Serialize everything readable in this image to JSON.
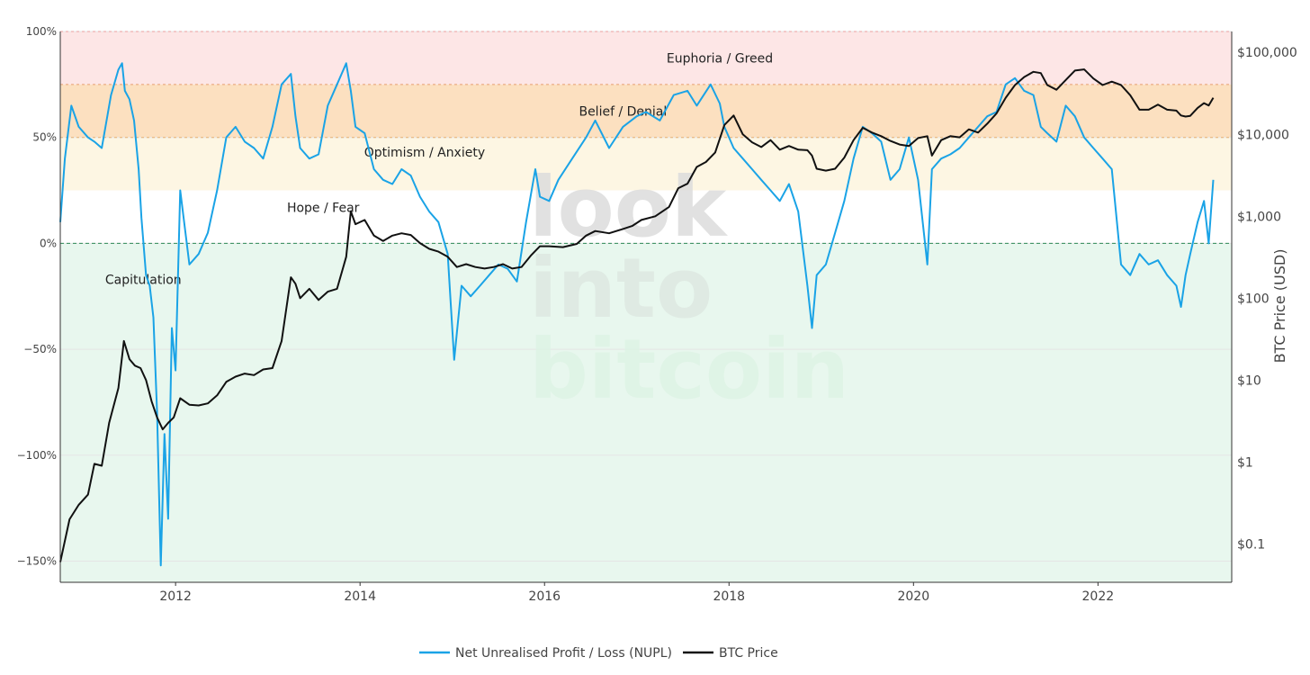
{
  "chart_data": {
    "type": "line",
    "title": "",
    "watermark": [
      "look",
      "into",
      "bitcoin"
    ],
    "x_range": [
      2010.75,
      2023.45
    ],
    "x_ticks": [
      2012,
      2014,
      2016,
      2018,
      2020,
      2022
    ],
    "x_tick_labels": [
      "2012",
      "2014",
      "2016",
      "2018",
      "2020",
      "2022"
    ],
    "y_left": {
      "range": [
        -160,
        100
      ],
      "ticks": [
        100,
        50,
        0,
        -50,
        -100,
        -150
      ],
      "tick_labels": [
        "100%",
        "50%",
        "0%",
        "−50%",
        "−100%",
        "−150%"
      ],
      "unit": "percent"
    },
    "y_right": {
      "label": "BTC Price (USD)",
      "scale": "log",
      "range": [
        0.034,
        180000
      ],
      "ticks": [
        100000,
        10000,
        1000,
        100,
        10,
        1,
        0.1
      ],
      "tick_labels": [
        "$100,000",
        "$10,000",
        "$1,000",
        "$100",
        "$10",
        "$1",
        "$0.1"
      ]
    },
    "zones": [
      {
        "label": "Euphoria / Greed",
        "from": 75,
        "to": 100,
        "color": "#fde6e6"
      },
      {
        "label": "Belief / Denial",
        "from": 50,
        "to": 75,
        "color": "#fce0c0"
      },
      {
        "label": "Optimism / Anxiety",
        "from": 25,
        "to": 50,
        "color": "#fdf6e3"
      },
      {
        "label": "Hope / Fear",
        "from": 0,
        "to": 25,
        "color": "#ffffff"
      },
      {
        "label": "Capitulation",
        "from": -160,
        "to": 0,
        "color": "#e8f7ee"
      }
    ],
    "zone_label_anchor": [
      2017.9,
      2016.85,
      2014.7,
      2013.6,
      2011.65
    ],
    "zone_label_value": [
      87.5,
      62.5,
      43,
      17,
      -17
    ],
    "series": [
      {
        "name": "Net Unrealised Profit / Loss (NUPL)",
        "axis": "left",
        "color": "#1aa3e6",
        "x": [
          2010.75,
          2010.8,
          2010.87,
          2010.95,
          2011.05,
          2011.12,
          2011.2,
          2011.3,
          2011.38,
          2011.42,
          2011.45,
          2011.5,
          2011.55,
          2011.6,
          2011.63,
          2011.68,
          2011.72,
          2011.76,
          2011.8,
          2011.84,
          2011.88,
          2011.92,
          2011.96,
          2012.0,
          2012.05,
          2012.15,
          2012.25,
          2012.35,
          2012.45,
          2012.55,
          2012.65,
          2012.75,
          2012.85,
          2012.95,
          2013.05,
          2013.15,
          2013.25,
          2013.3,
          2013.35,
          2013.45,
          2013.55,
          2013.65,
          2013.75,
          2013.85,
          2013.9,
          2013.95,
          2014.05,
          2014.15,
          2014.25,
          2014.35,
          2014.45,
          2014.55,
          2014.65,
          2014.75,
          2014.85,
          2014.95,
          2015.02,
          2015.1,
          2015.2,
          2015.3,
          2015.4,
          2015.5,
          2015.6,
          2015.7,
          2015.8,
          2015.9,
          2015.95,
          2016.05,
          2016.15,
          2016.3,
          2016.45,
          2016.55,
          2016.7,
          2016.85,
          2017.0,
          2017.1,
          2017.25,
          2017.4,
          2017.55,
          2017.65,
          2017.8,
          2017.9,
          2017.95,
          2018.05,
          2018.15,
          2018.25,
          2018.35,
          2018.45,
          2018.55,
          2018.65,
          2018.75,
          2018.85,
          2018.9,
          2018.95,
          2019.05,
          2019.15,
          2019.25,
          2019.35,
          2019.45,
          2019.55,
          2019.65,
          2019.75,
          2019.85,
          2019.95,
          2020.05,
          2020.15,
          2020.2,
          2020.3,
          2020.4,
          2020.5,
          2020.6,
          2020.7,
          2020.8,
          2020.9,
          2021.0,
          2021.1,
          2021.2,
          2021.3,
          2021.38,
          2021.45,
          2021.55,
          2021.65,
          2021.75,
          2021.85,
          2021.95,
          2022.05,
          2022.15,
          2022.25,
          2022.35,
          2022.45,
          2022.55,
          2022.65,
          2022.75,
          2022.85,
          2022.9,
          2022.95,
          2023.0,
          2023.08,
          2023.15,
          2023.2,
          2023.25
        ],
        "values": [
          10,
          40,
          65,
          55,
          50,
          48,
          45,
          70,
          82,
          85,
          72,
          68,
          58,
          35,
          12,
          -15,
          -20,
          -35,
          -80,
          -152,
          -90,
          -130,
          -40,
          -60,
          25,
          -10,
          -5,
          5,
          25,
          50,
          55,
          48,
          45,
          40,
          55,
          75,
          80,
          60,
          45,
          40,
          42,
          65,
          75,
          85,
          72,
          55,
          52,
          35,
          30,
          28,
          35,
          32,
          22,
          15,
          10,
          -5,
          -55,
          -20,
          -25,
          -20,
          -15,
          -10,
          -12,
          -18,
          10,
          35,
          22,
          20,
          30,
          40,
          50,
          58,
          45,
          55,
          60,
          62,
          58,
          70,
          72,
          65,
          75,
          66,
          55,
          45,
          40,
          35,
          30,
          25,
          20,
          28,
          15,
          -20,
          -40,
          -15,
          -10,
          5,
          20,
          40,
          55,
          52,
          48,
          30,
          35,
          50,
          30,
          -10,
          35,
          40,
          42,
          45,
          50,
          55,
          60,
          62,
          75,
          78,
          72,
          70,
          55,
          52,
          48,
          65,
          60,
          50,
          45,
          40,
          35,
          -10,
          -15,
          -5,
          -10,
          -8,
          -15,
          -20,
          -30,
          -15,
          -5,
          10,
          20,
          0,
          30
        ]
      },
      {
        "name": "BTC Price",
        "axis": "right",
        "color": "#111111",
        "x": [
          2010.75,
          2010.85,
          2010.95,
          2011.05,
          2011.12,
          2011.2,
          2011.28,
          2011.38,
          2011.44,
          2011.5,
          2011.56,
          2011.62,
          2011.68,
          2011.74,
          2011.8,
          2011.86,
          2011.92,
          2011.98,
          2012.05,
          2012.15,
          2012.25,
          2012.35,
          2012.45,
          2012.55,
          2012.65,
          2012.75,
          2012.85,
          2012.95,
          2013.05,
          2013.15,
          2013.25,
          2013.3,
          2013.35,
          2013.45,
          2013.55,
          2013.65,
          2013.75,
          2013.85,
          2013.9,
          2013.95,
          2014.05,
          2014.15,
          2014.25,
          2014.35,
          2014.45,
          2014.55,
          2014.65,
          2014.75,
          2014.85,
          2014.95,
          2015.05,
          2015.15,
          2015.25,
          2015.35,
          2015.45,
          2015.55,
          2015.65,
          2015.75,
          2015.85,
          2015.95,
          2016.05,
          2016.2,
          2016.35,
          2016.45,
          2016.55,
          2016.7,
          2016.85,
          2016.95,
          2017.05,
          2017.2,
          2017.35,
          2017.45,
          2017.55,
          2017.65,
          2017.75,
          2017.85,
          2017.95,
          2018.05,
          2018.15,
          2018.25,
          2018.35,
          2018.45,
          2018.55,
          2018.65,
          2018.75,
          2018.85,
          2018.9,
          2018.95,
          2019.05,
          2019.15,
          2019.25,
          2019.35,
          2019.45,
          2019.55,
          2019.65,
          2019.75,
          2019.85,
          2019.95,
          2020.05,
          2020.15,
          2020.2,
          2020.3,
          2020.4,
          2020.5,
          2020.6,
          2020.7,
          2020.8,
          2020.9,
          2021.0,
          2021.1,
          2021.2,
          2021.3,
          2021.38,
          2021.45,
          2021.55,
          2021.65,
          2021.75,
          2021.85,
          2021.95,
          2022.05,
          2022.15,
          2022.25,
          2022.35,
          2022.45,
          2022.55,
          2022.65,
          2022.75,
          2022.85,
          2022.9,
          2022.95,
          2023.0,
          2023.08,
          2023.15,
          2023.2,
          2023.25
        ],
        "values": [
          0.06,
          0.2,
          0.3,
          0.4,
          0.95,
          0.9,
          3,
          8,
          30,
          18,
          15,
          14,
          10,
          5.5,
          3.5,
          2.5,
          3,
          3.5,
          6,
          5,
          4.9,
          5.2,
          6.5,
          9.5,
          11,
          12,
          11.5,
          13.5,
          14,
          30,
          180,
          150,
          100,
          130,
          95,
          120,
          130,
          320,
          1150,
          800,
          900,
          580,
          500,
          580,
          620,
          590,
          470,
          400,
          370,
          320,
          240,
          260,
          240,
          230,
          240,
          260,
          230,
          240,
          330,
          430,
          430,
          420,
          460,
          580,
          660,
          620,
          700,
          760,
          900,
          1000,
          1300,
          2200,
          2500,
          4000,
          4600,
          6000,
          13000,
          17000,
          10000,
          8000,
          7000,
          8500,
          6500,
          7200,
          6500,
          6400,
          5500,
          3800,
          3600,
          3800,
          5200,
          8500,
          12000,
          10500,
          9500,
          8300,
          7500,
          7200,
          9000,
          9500,
          5500,
          8500,
          9500,
          9200,
          11500,
          10500,
          13500,
          18000,
          28000,
          40000,
          50000,
          58000,
          56000,
          40000,
          35000,
          46000,
          60000,
          62000,
          48000,
          40000,
          44000,
          40000,
          30000,
          20000,
          20000,
          23000,
          20000,
          19500,
          17000,
          16500,
          16800,
          21000,
          24000,
          22500,
          28000
        ]
      }
    ],
    "legend": {
      "position": "bottom",
      "items": [
        "Net Unrealised Profit / Loss (NUPL)",
        "BTC Price"
      ]
    }
  }
}
